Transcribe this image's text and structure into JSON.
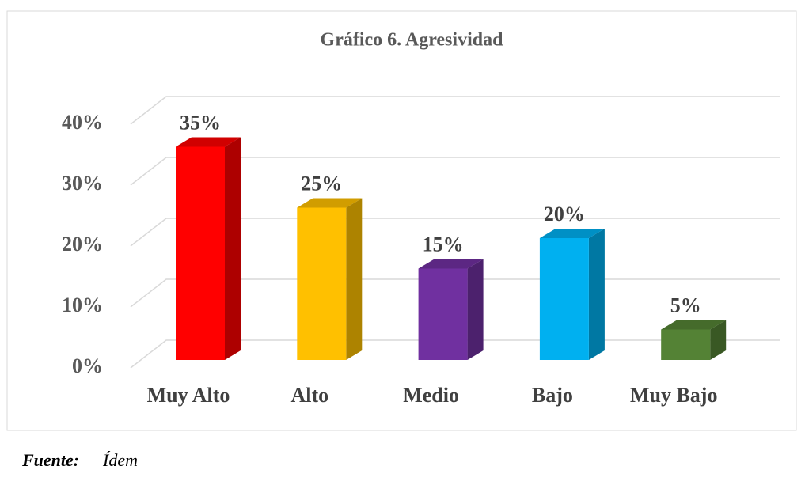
{
  "chart_data": {
    "type": "bar3d",
    "title": "Gráfico 6. Agresividad",
    "categories": [
      "Muy Alto",
      "Alto",
      "Medio",
      "Bajo",
      "Muy Bajo"
    ],
    "values": [
      35,
      25,
      15,
      20,
      5
    ],
    "value_labels": [
      "35%",
      "25%",
      "15%",
      "20%",
      "5%"
    ],
    "colors": [
      "#ff0000",
      "#ffc000",
      "#7030a0",
      "#00b0f0",
      "#548235"
    ],
    "ylim": [
      0,
      40
    ],
    "yticks": [
      {
        "value": 0,
        "label": "0%"
      },
      {
        "value": 10,
        "label": "10%"
      },
      {
        "value": 20,
        "label": "20%"
      },
      {
        "value": 30,
        "label": "30%"
      },
      {
        "value": 40,
        "label": "40%"
      }
    ],
    "grid": true
  },
  "source": {
    "label": "Fuente:",
    "text": "Ídem"
  }
}
